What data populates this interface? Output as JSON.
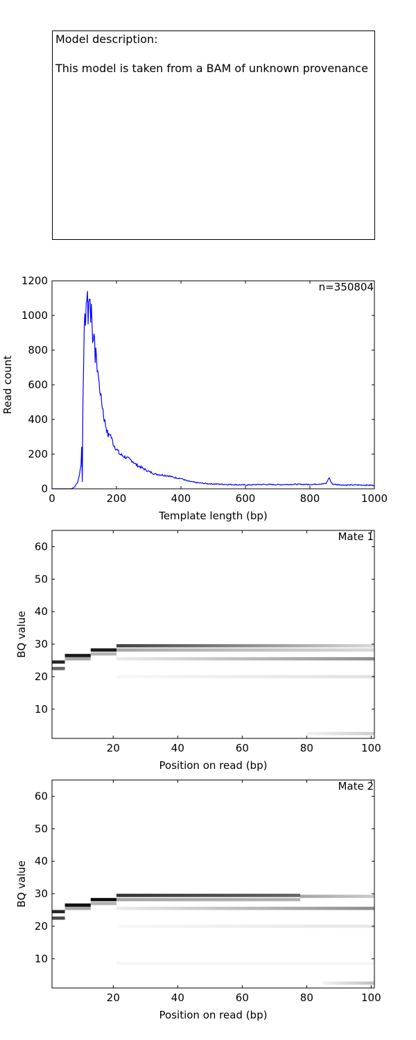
{
  "description": {
    "heading": "Model description:",
    "text": "This model is taken from a BAM of unknown provenance"
  },
  "chart_data": [
    {
      "type": "line",
      "annotation": "n=350804",
      "xlabel": "Template length (bp)",
      "ylabel": "Read count",
      "xlim": [
        0,
        1000
      ],
      "ylim": [
        0,
        1200
      ],
      "xticks": [
        0,
        200,
        400,
        600,
        800,
        1000
      ],
      "yticks": [
        0,
        200,
        400,
        600,
        800,
        1000,
        1200
      ],
      "color": "#0000ff",
      "x": [
        0,
        60,
        70,
        80,
        85,
        90,
        92,
        94,
        96,
        98,
        100,
        102,
        104,
        106,
        108,
        110,
        112,
        114,
        116,
        118,
        120,
        122,
        124,
        126,
        128,
        130,
        132,
        134,
        136,
        138,
        140,
        142,
        145,
        148,
        150,
        152,
        155,
        158,
        160,
        165,
        170,
        175,
        180,
        190,
        200,
        210,
        220,
        230,
        240,
        250,
        260,
        270,
        280,
        300,
        320,
        340,
        360,
        380,
        400,
        420,
        450,
        480,
        500,
        550,
        600,
        650,
        700,
        750,
        800,
        850,
        860,
        865,
        870,
        880,
        900,
        950,
        1000
      ],
      "y": [
        0,
        0,
        10,
        40,
        80,
        140,
        250,
        40,
        500,
        750,
        900,
        1000,
        950,
        1100,
        1050,
        1120,
        1000,
        1080,
        1130,
        1070,
        1000,
        1060,
        960,
        880,
        900,
        850,
        830,
        760,
        820,
        720,
        700,
        690,
        620,
        580,
        560,
        520,
        490,
        460,
        420,
        380,
        340,
        300,
        320,
        260,
        230,
        200,
        190,
        180,
        170,
        160,
        140,
        130,
        120,
        100,
        85,
        80,
        75,
        65,
        60,
        45,
        35,
        30,
        28,
        25,
        22,
        25,
        24,
        26,
        25,
        30,
        65,
        40,
        28,
        25,
        22,
        22,
        20
      ]
    },
    {
      "type": "heatmap",
      "annotation": "Mate 1",
      "xlabel": "Position on read (bp)",
      "ylabel": "BQ value",
      "xlim": [
        1,
        101
      ],
      "ylim": [
        1,
        65
      ],
      "xticks": [
        20,
        40,
        60,
        80,
        100
      ],
      "yticks": [
        10,
        20,
        30,
        40,
        50,
        60
      ],
      "bands": [
        {
          "x": [
            1,
            5
          ],
          "y": 24.5,
          "intensity": 0.85
        },
        {
          "x": [
            1,
            5
          ],
          "y": 22.5,
          "intensity": 0.6
        },
        {
          "x": [
            5,
            13
          ],
          "y": 26.5,
          "intensity": 0.9
        },
        {
          "x": [
            5,
            13
          ],
          "y": 25.5,
          "intensity": 0.35
        },
        {
          "x": [
            13,
            21
          ],
          "y": 28.2,
          "intensity": 0.9
        },
        {
          "x": [
            13,
            21
          ],
          "y": 27.0,
          "intensity": 0.3
        },
        {
          "x": [
            21,
            101
          ],
          "y": 29.5,
          "intensity": [
            0.75,
            0.15
          ]
        },
        {
          "x": [
            21,
            101
          ],
          "y": 28.2,
          "intensity": [
            0.35,
            0.15
          ]
        },
        {
          "x": [
            21,
            101
          ],
          "y": 25.5,
          "intensity": [
            0.08,
            0.45
          ]
        },
        {
          "x": [
            21,
            101
          ],
          "y": 20.0,
          "intensity": [
            0.03,
            0.12
          ]
        },
        {
          "x": [
            80,
            101
          ],
          "y": 2.5,
          "intensity": [
            0.05,
            0.2
          ]
        }
      ]
    },
    {
      "type": "heatmap",
      "annotation": "Mate 2",
      "xlabel": "Position on read (bp)",
      "ylabel": "BQ value",
      "xlim": [
        1,
        101
      ],
      "ylim": [
        1,
        65
      ],
      "xticks": [
        20,
        40,
        60,
        80,
        100
      ],
      "yticks": [
        10,
        20,
        30,
        40,
        50,
        60
      ],
      "bands": [
        {
          "x": [
            1,
            5
          ],
          "y": 24.5,
          "intensity": 0.85
        },
        {
          "x": [
            1,
            5
          ],
          "y": 22.5,
          "intensity": 0.7
        },
        {
          "x": [
            5,
            13
          ],
          "y": 26.5,
          "intensity": 0.95
        },
        {
          "x": [
            5,
            13
          ],
          "y": 25.5,
          "intensity": 0.35
        },
        {
          "x": [
            13,
            21
          ],
          "y": 28.2,
          "intensity": 0.95
        },
        {
          "x": [
            13,
            21
          ],
          "y": 27.0,
          "intensity": 0.3
        },
        {
          "x": [
            21,
            78
          ],
          "y": 29.5,
          "intensity": [
            0.8,
            0.6
          ]
        },
        {
          "x": [
            21,
            78
          ],
          "y": 28.2,
          "intensity": [
            0.35,
            0.3
          ]
        },
        {
          "x": [
            78,
            101
          ],
          "y": 29.2,
          "intensity": [
            0.35,
            0.2
          ]
        },
        {
          "x": [
            21,
            101
          ],
          "y": 25.5,
          "intensity": [
            0.08,
            0.45
          ]
        },
        {
          "x": [
            21,
            101
          ],
          "y": 20.0,
          "intensity": [
            0.03,
            0.1
          ]
        },
        {
          "x": [
            21,
            101
          ],
          "y": 8.5,
          "intensity": 0.04
        },
        {
          "x": [
            85,
            101
          ],
          "y": 2.5,
          "intensity": [
            0.05,
            0.25
          ]
        }
      ]
    }
  ]
}
